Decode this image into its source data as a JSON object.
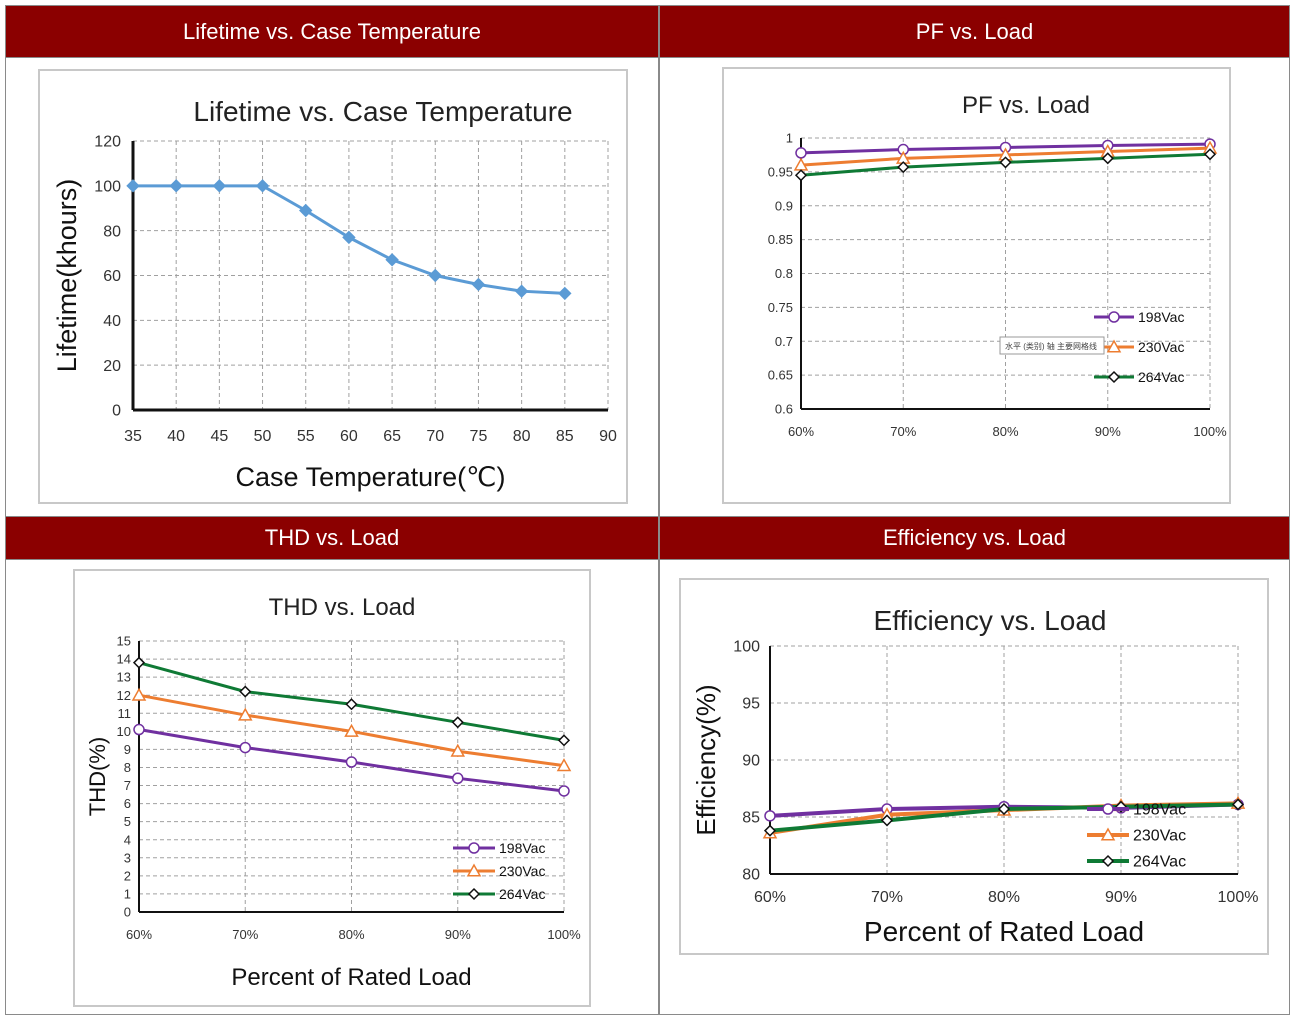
{
  "panels": [
    {
      "header": "Lifetime vs. Case Temperature"
    },
    {
      "header": "PF vs. Load"
    },
    {
      "header": "THD vs. Load"
    },
    {
      "header": "Efficiency vs. Load"
    }
  ],
  "tooltip_text": "水平 (类别) 轴 主要网格线",
  "chart_data": [
    {
      "id": "lifetime",
      "type": "line",
      "title": "Lifetime vs. Case Temperature",
      "xlabel": "Case Temperature(℃)",
      "ylabel": "Lifetime(khours)",
      "x_ticks": [
        "35",
        "40",
        "45",
        "50",
        "55",
        "60",
        "65",
        "70",
        "75",
        "80",
        "85",
        "90"
      ],
      "y_ticks": [
        "0",
        "20",
        "40",
        "60",
        "80",
        "100",
        "120"
      ],
      "xlim": [
        35,
        90
      ],
      "ylim": [
        0,
        120
      ],
      "grid": true,
      "series": [
        {
          "x": [
            35,
            40,
            45,
            50,
            55,
            60,
            65,
            70,
            75,
            80,
            85
          ],
          "values": [
            100,
            100,
            100,
            100,
            89,
            77,
            67,
            60,
            56,
            53,
            52
          ],
          "color": "#5b9bd5"
        }
      ]
    },
    {
      "id": "pf",
      "type": "line",
      "title": "PF vs. Load",
      "xlabel": "",
      "ylabel": "",
      "categories": [
        "60%",
        "70%",
        "80%",
        "90%",
        "100%"
      ],
      "y_ticks": [
        "0.6",
        "0.65",
        "0.7",
        "0.75",
        "0.8",
        "0.85",
        "0.9",
        "0.95",
        "1"
      ],
      "ylim": [
        0.6,
        1
      ],
      "grid": true,
      "legend": "right",
      "series": [
        {
          "name": "198Vac",
          "values": [
            0.978,
            0.983,
            0.986,
            0.989,
            0.991
          ],
          "color": "#7030a0",
          "marker": "circle"
        },
        {
          "name": "230Vac",
          "values": [
            0.96,
            0.97,
            0.975,
            0.98,
            0.985
          ],
          "color": "#ed7d31",
          "marker": "triangle"
        },
        {
          "name": "264Vac",
          "values": [
            0.945,
            0.957,
            0.964,
            0.97,
            0.976
          ],
          "color": "#0f7a35",
          "marker": "diamond"
        }
      ]
    },
    {
      "id": "thd",
      "type": "line",
      "title": "THD vs. Load",
      "xlabel": "Percent of Rated Load",
      "ylabel": "THD(%)",
      "categories": [
        "60%",
        "70%",
        "80%",
        "90%",
        "100%"
      ],
      "y_ticks": [
        "0",
        "1",
        "2",
        "3",
        "4",
        "5",
        "6",
        "7",
        "8",
        "9",
        "10",
        "11",
        "12",
        "13",
        "14",
        "15"
      ],
      "ylim": [
        0,
        15
      ],
      "grid": true,
      "legend": "bottom-right",
      "series": [
        {
          "name": "198Vac",
          "values": [
            10.1,
            9.1,
            8.3,
            7.4,
            6.7
          ],
          "color": "#7030a0",
          "marker": "circle"
        },
        {
          "name": "230Vac",
          "values": [
            12,
            10.9,
            10,
            8.9,
            8.1
          ],
          "color": "#ed7d31",
          "marker": "triangle"
        },
        {
          "name": "264Vac",
          "values": [
            13.8,
            12.2,
            11.5,
            10.5,
            9.5
          ],
          "color": "#0f7a35",
          "marker": "diamond"
        }
      ]
    },
    {
      "id": "efficiency",
      "type": "line",
      "title": "Efficiency vs. Load",
      "xlabel": "Percent of Rated Load",
      "ylabel": "Efficiency(%)",
      "categories": [
        "60%",
        "70%",
        "80%",
        "90%",
        "100%"
      ],
      "y_ticks": [
        "80",
        "85",
        "90",
        "95",
        "100"
      ],
      "ylim": [
        80,
        100
      ],
      "grid": true,
      "legend": "bottom-right",
      "series": [
        {
          "name": "198Vac",
          "values": [
            85.1,
            85.7,
            85.9,
            85.8,
            86.1
          ],
          "color": "#7030a0",
          "marker": "circle"
        },
        {
          "name": "230Vac",
          "values": [
            83.6,
            85.2,
            85.6,
            86,
            86.2
          ],
          "color": "#ed7d31",
          "marker": "triangle"
        },
        {
          "name": "264Vac",
          "values": [
            83.8,
            84.7,
            85.7,
            85.9,
            86.1
          ],
          "color": "#0f7a35",
          "marker": "diamond"
        }
      ]
    }
  ]
}
